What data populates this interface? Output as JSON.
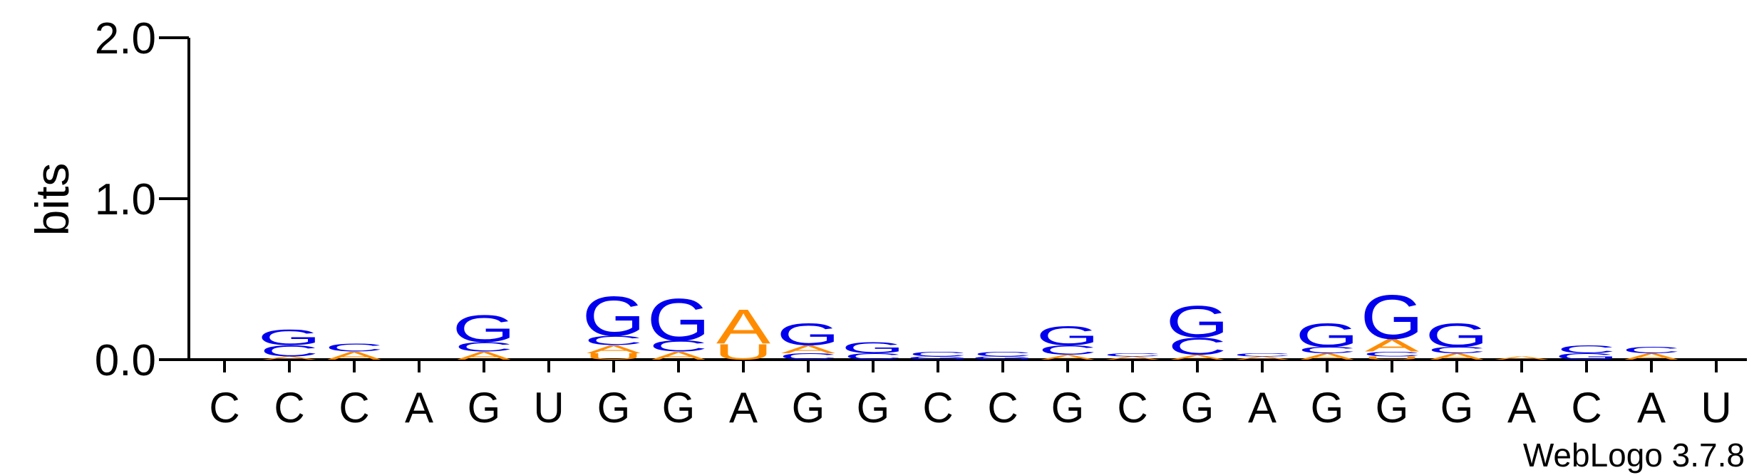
{
  "chart_data": {
    "type": "logo",
    "ylabel": "bits",
    "annotation": "WebLogo 3.7.8",
    "ylim": [
      0,
      2
    ],
    "yticks": [
      {
        "value": 0,
        "label": "0.0"
      },
      {
        "value": 1,
        "label": "1.0"
      },
      {
        "value": 2,
        "label": "2.0"
      }
    ],
    "categories": [
      "C",
      "C",
      "C",
      "A",
      "G",
      "U",
      "G",
      "G",
      "A",
      "G",
      "G",
      "C",
      "C",
      "G",
      "C",
      "G",
      "A",
      "G",
      "G",
      "G",
      "A",
      "C",
      "A",
      "U"
    ],
    "series": [
      {
        "name": "A",
        "color": "#ff8c00",
        "values": [
          0,
          0.02,
          0.05,
          0,
          0.05,
          0,
          0.05,
          0.05,
          0.22,
          0.05,
          0,
          0,
          0,
          0.03,
          0.02,
          0.03,
          0.02,
          0.04,
          0.08,
          0.04,
          0.02,
          0,
          0.04,
          0
        ]
      },
      {
        "name": "C",
        "color": "#0000ee",
        "values": [
          0,
          0.07,
          0.05,
          0,
          0.06,
          0,
          0.06,
          0.07,
          0,
          0.04,
          0.04,
          0.03,
          0.03,
          0.06,
          0.02,
          0.11,
          0.02,
          0.04,
          0.03,
          0.04,
          0,
          0.05,
          0.04,
          0
        ]
      },
      {
        "name": "G",
        "color": "#0000ee",
        "values": [
          0,
          0.1,
          0,
          0,
          0.17,
          0,
          0.25,
          0.27,
          0,
          0.14,
          0.07,
          0.02,
          0.02,
          0.12,
          0,
          0.2,
          0,
          0.15,
          0.28,
          0.15,
          0,
          0.04,
          0,
          0
        ]
      },
      {
        "name": "U",
        "color": "#ff8c00",
        "values": [
          0,
          0,
          0,
          0,
          0,
          0,
          0.04,
          0,
          0.1,
          0,
          0,
          0,
          0,
          0,
          0,
          0,
          0,
          0,
          0.02,
          0,
          0,
          0,
          0,
          0
        ]
      }
    ]
  }
}
